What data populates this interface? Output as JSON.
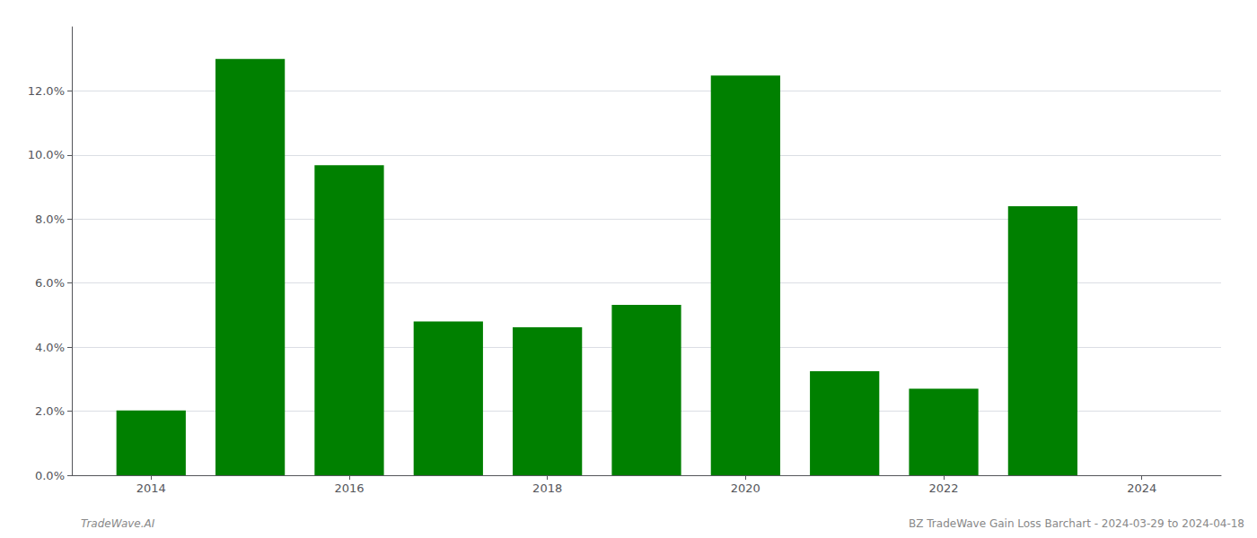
{
  "chart_data": {
    "type": "bar",
    "x": [
      2014,
      2015,
      2016,
      2017,
      2018,
      2019,
      2020,
      2021,
      2022,
      2023
    ],
    "values": [
      0.0202,
      0.13,
      0.0968,
      0.048,
      0.0462,
      0.0532,
      0.1248,
      0.0325,
      0.027,
      0.084
    ],
    "color": "#008000",
    "xlim": [
      2013.2,
      2024.8
    ],
    "xticks": [
      2014,
      2016,
      2018,
      2020,
      2022,
      2024
    ],
    "ylim": [
      0,
      0.14
    ],
    "yticks": [
      {
        "value": 0.0,
        "label": "0.0%"
      },
      {
        "value": 0.02,
        "label": "2.0%"
      },
      {
        "value": 0.04,
        "label": "4.0%"
      },
      {
        "value": 0.06,
        "label": "6.0%"
      },
      {
        "value": 0.08,
        "label": "8.0%"
      },
      {
        "value": 0.1,
        "label": "10.0%"
      },
      {
        "value": 0.12,
        "label": "12.0%"
      }
    ],
    "grid": true,
    "annotations": [
      "TradeWave.AI",
      "BZ TradeWave Gain Loss Barchart - 2024-03-29 to 2024-04-18"
    ]
  }
}
